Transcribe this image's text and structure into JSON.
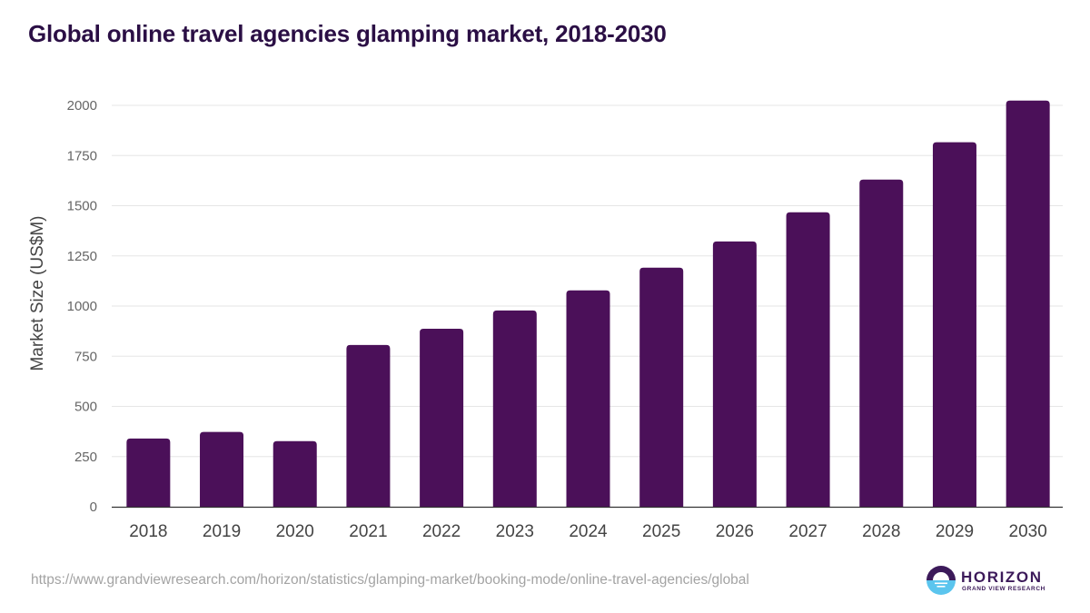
{
  "chart_data": {
    "type": "bar",
    "title": "Global online travel agencies glamping market, 2018-2030",
    "xlabel": "",
    "ylabel": "Market Size (US$M)",
    "categories": [
      "2018",
      "2019",
      "2020",
      "2021",
      "2022",
      "2023",
      "2024",
      "2025",
      "2026",
      "2027",
      "2028",
      "2029",
      "2030"
    ],
    "values": [
      340,
      373,
      327,
      806,
      887,
      978,
      1078,
      1191,
      1322,
      1467,
      1630,
      1816,
      2024
    ],
    "ylim": [
      0,
      2000
    ],
    "yticks": [
      0,
      250,
      500,
      750,
      1000,
      1250,
      1500,
      1750,
      2000
    ],
    "grid": true,
    "legend": "none",
    "bar_color": "#4b1059"
  },
  "footer": {
    "source_url": "https://www.grandviewresearch.com/horizon/statistics/glamping-market/booking-mode/online-travel-agencies/global",
    "brand_name": "HORIZON",
    "brand_sub": "GRAND VIEW RESEARCH"
  },
  "colors": {
    "title": "#2b0f45",
    "bar": "#4b1059",
    "logo_dark": "#3c1a5a",
    "logo_light": "#5bc5ee"
  }
}
